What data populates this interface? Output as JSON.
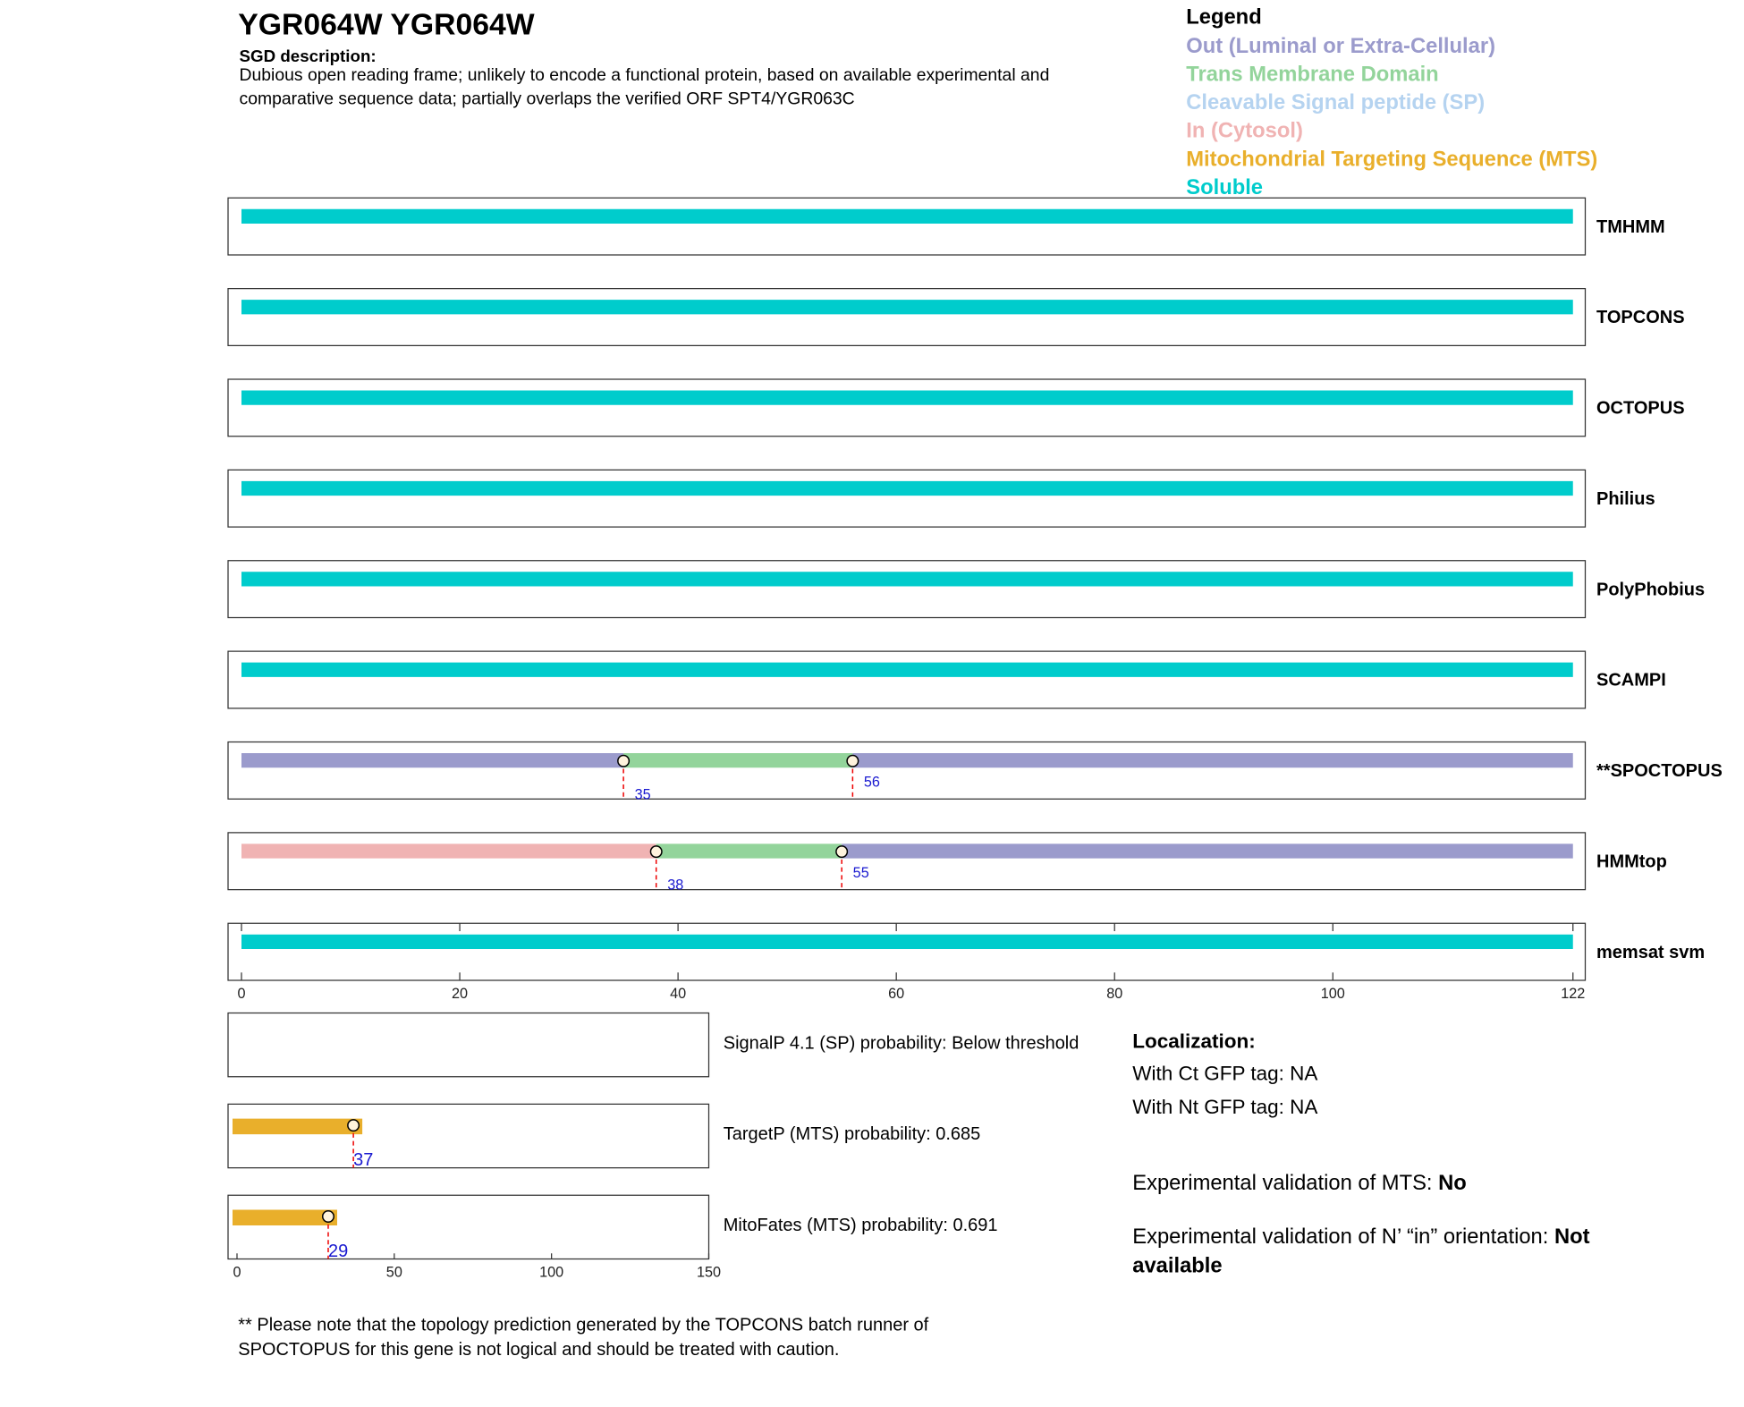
{
  "header": {
    "title": "YGR064W  YGR064W",
    "description_label": "SGD description:",
    "description": "Dubious open reading frame; unlikely to encode a functional protein, based on available experimental and comparative sequence data; partially overlaps the verified ORF SPT4/YGR063C"
  },
  "legend": {
    "title": "Legend",
    "items": [
      {
        "label": "Out (Luminal or Extra-Cellular)",
        "color": "#9b9bcc"
      },
      {
        "label": "Trans Membrane Domain",
        "color": "#93d49b"
      },
      {
        "label": "Cleavable Signal peptide (SP)",
        "color": "#b5d3f0"
      },
      {
        "label": "In (Cytosol)",
        "color": "#f0b3b3"
      },
      {
        "label": "Mitochondrial Targeting Sequence (MTS)",
        "color": "#e9af2b"
      },
      {
        "label": "Soluble",
        "color": "#00cccc"
      }
    ]
  },
  "chart_data": [
    {
      "type": "topology",
      "xlim": [
        0,
        122
      ],
      "xticks": [
        0,
        20,
        40,
        60,
        80,
        100,
        122
      ],
      "tracks": [
        {
          "name": "TMHMM",
          "boundaries": [],
          "segments": [
            {
              "color": "#00cccc"
            }
          ]
        },
        {
          "name": "TOPCONS",
          "boundaries": [],
          "segments": [
            {
              "color": "#00cccc"
            }
          ]
        },
        {
          "name": "OCTOPUS",
          "boundaries": [],
          "segments": [
            {
              "color": "#00cccc"
            }
          ]
        },
        {
          "name": "Philius",
          "boundaries": [],
          "segments": [
            {
              "color": "#00cccc"
            }
          ]
        },
        {
          "name": "PolyPhobius",
          "boundaries": [],
          "segments": [
            {
              "color": "#00cccc"
            }
          ]
        },
        {
          "name": "SCAMPI",
          "boundaries": [],
          "segments": [
            {
              "color": "#00cccc"
            }
          ]
        },
        {
          "name": "**SPOCTOPUS",
          "boundaries": [
            35,
            56
          ],
          "segments": [
            {
              "color": "#9b9bcc"
            },
            {
              "color": "#93d49b"
            },
            {
              "color": "#9b9bcc"
            }
          ]
        },
        {
          "name": "HMMtop",
          "boundaries": [
            38,
            55
          ],
          "segments": [
            {
              "color": "#f0b3b3"
            },
            {
              "color": "#93d49b"
            },
            {
              "color": "#9b9bcc"
            }
          ]
        },
        {
          "name": "memsat svm",
          "boundaries": [],
          "segments": [
            {
              "color": "#00cccc"
            }
          ]
        }
      ]
    },
    {
      "type": "mts",
      "xlim": [
        0,
        150
      ],
      "xticks": [
        0,
        50,
        100,
        150
      ],
      "color": "#e9af2b",
      "tracks": [
        {
          "label": "SignalP 4.1 (SP) probability: Below threshold"
        },
        {
          "label": "TargetP (MTS) probability: 0.685",
          "end": 37
        },
        {
          "label": "MitoFates (MTS) probability: 0.691",
          "end": 29
        }
      ]
    }
  ],
  "localization": {
    "title": "Localization:",
    "lines": [
      "With Ct GFP tag: NA",
      "With Nt GFP tag: NA"
    ],
    "validations": [
      {
        "label": "Experimental validation of MTS: ",
        "value": "No"
      },
      {
        "label": "Experimental validation of N’ “in” orientation: ",
        "value": "Not available"
      }
    ]
  },
  "note": "** Please note that the topology prediction generated by the TOPCONS batch runner of SPOCTOPUS for this gene is not logical and should be treated with caution."
}
